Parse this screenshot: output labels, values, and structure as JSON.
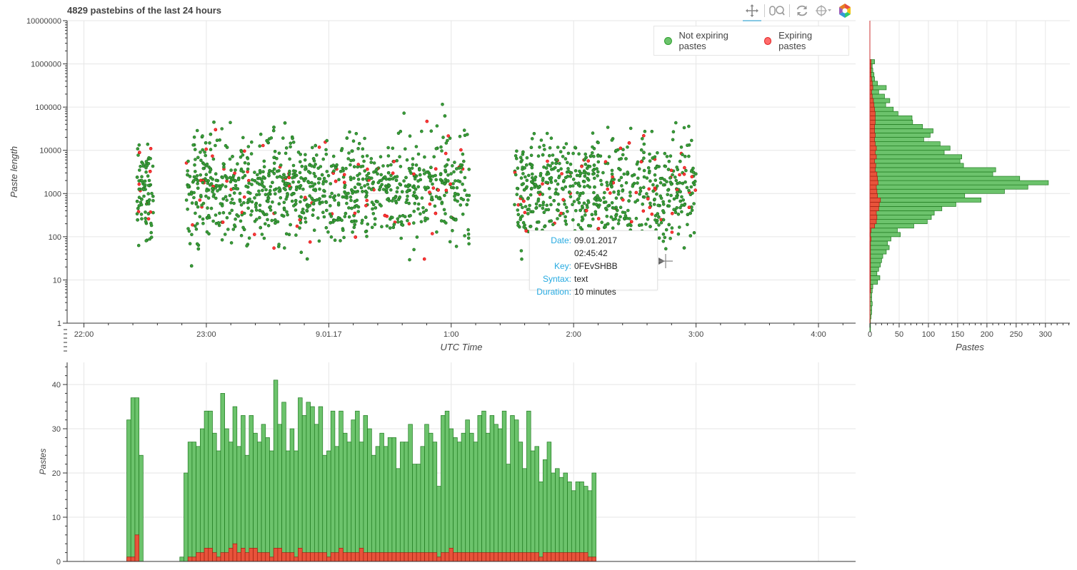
{
  "page": {
    "title": "4829 pastebins of the last 24 hours"
  },
  "toolbar": {
    "tools": [
      {
        "name": "pan",
        "icon": "pan-icon",
        "active": true
      },
      {
        "name": "wheel-zoom",
        "icon": "wheel-zoom-icon",
        "active": false
      },
      {
        "name": "reset",
        "icon": "reset-icon",
        "active": false
      },
      {
        "name": "hover",
        "icon": "crosshair-hover-icon",
        "active": false
      },
      {
        "name": "bokeh-logo",
        "icon": "bokeh-logo-icon",
        "active": false
      }
    ]
  },
  "colors": {
    "not_expiring": "#2ca02c",
    "expiring": "#ff2222",
    "bar_green_fill": "#6cc36c",
    "bar_green_line": "#1f7a1f",
    "bar_red_fill": "#e8533b",
    "bar_red_line": "#a02010"
  },
  "legend": {
    "items": [
      {
        "label": "Not expiring pastes",
        "color": "#6cc36c"
      },
      {
        "label": "Expiring pastes",
        "color": "#ff6b6b"
      }
    ]
  },
  "tooltip": {
    "rows": [
      {
        "key": "Date:",
        "value": "09.01.2017 02:45:42"
      },
      {
        "key": "Key:",
        "value": "0FEvSHBB"
      },
      {
        "key": "Syntax:",
        "value": "text"
      },
      {
        "key": "Duration:",
        "value": "10 minutes"
      }
    ]
  },
  "chart_data": [
    {
      "type": "scatter",
      "name": "main",
      "title": "4829 pastebins of the last 24 hours",
      "xlabel": "UTC Time",
      "ylabel": "Paste length",
      "y_scale": "log",
      "ylim": [
        1,
        10000000
      ],
      "xlim": [
        "08.01.17 21:51",
        "09.01.17 04:17"
      ],
      "x_ticks": [
        "22:00",
        "23:00",
        "9.01.17",
        "1:00",
        "2:00",
        "3:00",
        "4:00"
      ],
      "y_ticks": [
        "1",
        "10",
        "100",
        "1000",
        "10000",
        "100000",
        "1000000",
        "10000000"
      ],
      "legend": "top-right",
      "grid": true,
      "note": "approx 4829 points, dense band 100 to 10000, gap between 0:50 and 1:00",
      "series": [
        {
          "name": "Not expiring pastes"
        },
        {
          "name": "Expiring pastes"
        }
      ]
    },
    {
      "type": "bar",
      "name": "length-histogram",
      "orientation": "horizontal",
      "xlabel": "Pastes",
      "ylabel": "",
      "xlim": [
        0,
        340
      ],
      "x_ticks": [
        "0",
        "50",
        "100",
        "150",
        "200",
        "250",
        "300"
      ],
      "bin_log10_edges_start": -0.3,
      "bin_width_log10": 0.1,
      "series": [
        {
          "name": "Not expiring pastes",
          "values": [
            0,
            1,
            1,
            1,
            2,
            3,
            3,
            4,
            3,
            3,
            4,
            5,
            13,
            17,
            12,
            15,
            18,
            20,
            22,
            28,
            33,
            30,
            36,
            52,
            47,
            75,
            98,
            105,
            110,
            123,
            147,
            190,
            162,
            230,
            270,
            305,
            256,
            210,
            215,
            160,
            154,
            157,
            127,
            137,
            120,
            92,
            103,
            108,
            90,
            73,
            72,
            48,
            40,
            27,
            34,
            25,
            15,
            28,
            13,
            8,
            7,
            5,
            4,
            8,
            0,
            0,
            0
          ]
        },
        {
          "name": "Expiring pastes",
          "values": [
            0,
            0,
            0,
            0,
            0,
            0,
            0,
            0,
            0,
            0,
            1,
            1,
            1,
            1,
            1,
            1,
            1,
            1,
            1,
            1,
            1,
            1,
            2,
            1,
            2,
            8,
            11,
            12,
            11,
            15,
            16,
            18,
            13,
            12,
            11,
            14,
            13,
            12,
            9,
            10,
            8,
            11,
            9,
            11,
            9,
            8,
            9,
            8,
            8,
            9,
            9,
            9,
            8,
            7,
            6,
            4,
            3,
            5,
            4,
            3,
            2,
            2,
            2,
            2,
            0,
            0,
            0
          ]
        }
      ]
    },
    {
      "type": "bar",
      "name": "time-histogram",
      "xlabel": "",
      "ylabel": "Pastes",
      "ylim": [
        0,
        45
      ],
      "y_ticks": [
        "0",
        "10",
        "20",
        "30",
        "40"
      ],
      "x_start": "08.01.17 21:51",
      "bin_minutes": 2,
      "series": [
        {
          "name": "Not expiring pastes",
          "values": [
            0,
            0,
            0,
            0,
            0,
            0,
            0,
            0,
            0,
            0,
            0,
            0,
            0,
            0,
            0,
            32,
            37,
            37,
            24,
            0,
            0,
            0,
            0,
            0,
            0,
            0,
            0,
            0,
            1,
            20,
            27,
            27,
            26,
            30,
            34,
            34,
            29,
            25,
            38,
            30,
            27,
            35,
            26,
            33,
            24,
            33,
            29,
            27,
            31,
            28,
            25,
            41,
            31,
            36,
            25,
            30,
            25,
            37,
            33,
            36,
            35,
            31,
            35,
            24,
            25,
            34,
            26,
            34,
            29,
            27,
            32,
            34,
            27,
            33,
            30,
            24,
            26,
            29,
            26,
            28,
            28,
            21,
            27,
            27,
            31,
            22,
            22,
            26,
            31,
            29,
            27,
            17,
            33,
            34,
            30,
            28,
            27,
            29,
            32,
            29,
            27,
            33,
            34,
            29,
            33,
            31,
            30,
            34,
            22,
            33,
            32,
            27,
            21,
            34,
            25,
            26,
            18,
            23,
            27,
            20,
            21,
            19,
            20,
            18,
            16,
            18,
            18,
            17,
            16,
            20,
            0,
            0,
            0,
            0,
            0,
            0,
            0,
            0,
            0,
            0,
            0,
            0,
            0,
            0,
            0,
            0,
            0,
            0
          ]
        },
        {
          "name": "Expiring pastes",
          "values": [
            0,
            0,
            0,
            0,
            0,
            0,
            0,
            0,
            0,
            0,
            0,
            0,
            0,
            0,
            0,
            1,
            1,
            6,
            0,
            0,
            0,
            0,
            0,
            0,
            0,
            0,
            0,
            0,
            0,
            0,
            1,
            1,
            2,
            2,
            3,
            3,
            2,
            1,
            2,
            2,
            3,
            4,
            2,
            3,
            2,
            3,
            3,
            2,
            2,
            2,
            1,
            3,
            3,
            2,
            2,
            2,
            1,
            3,
            2,
            2,
            2,
            2,
            2,
            2,
            1,
            2,
            2,
            3,
            2,
            2,
            2,
            2,
            3,
            2,
            2,
            2,
            2,
            2,
            2,
            2,
            2,
            2,
            2,
            2,
            2,
            2,
            2,
            2,
            2,
            2,
            2,
            1,
            2,
            2,
            3,
            2,
            2,
            2,
            2,
            2,
            2,
            2,
            2,
            2,
            2,
            2,
            2,
            2,
            2,
            2,
            2,
            2,
            2,
            2,
            2,
            2,
            1,
            2,
            2,
            2,
            2,
            2,
            2,
            2,
            2,
            2,
            2,
            2,
            1,
            1,
            0,
            0,
            0,
            0,
            0,
            0,
            0,
            0,
            0,
            0,
            0,
            0,
            0,
            0,
            0,
            0,
            0,
            0
          ]
        }
      ]
    }
  ]
}
